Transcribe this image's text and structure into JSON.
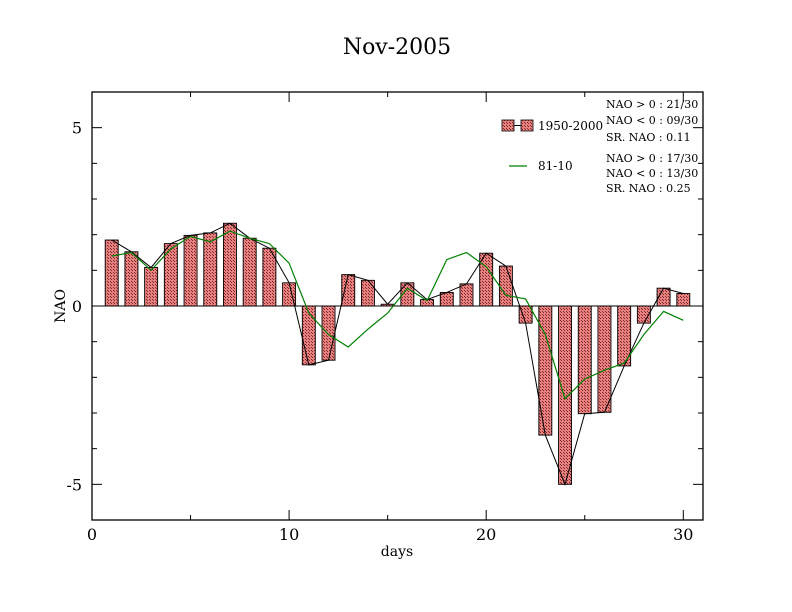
{
  "chart_data": {
    "type": "bar",
    "title": "Nov-2005",
    "xlabel": "days",
    "ylabel": "NAO",
    "xlim": [
      0,
      31
    ],
    "ylim": [
      -6,
      6
    ],
    "xticks": [
      0,
      10,
      20,
      30
    ],
    "yticks": [
      -5,
      0,
      5
    ],
    "grid": false,
    "legend_position": "top-right",
    "colors": {
      "bar_fill": "#e88080",
      "bar_hatch": "#7a2a2a",
      "line_black": "#000000",
      "line_green": "#008000"
    },
    "x": [
      1,
      2,
      3,
      4,
      5,
      6,
      7,
      8,
      9,
      10,
      11,
      12,
      13,
      14,
      15,
      16,
      17,
      18,
      19,
      20,
      21,
      22,
      23,
      24,
      25,
      26,
      27,
      28,
      29,
      30
    ],
    "series": [
      {
        "name": "1950-2000",
        "type": "bar",
        "values": [
          1.85,
          1.52,
          1.08,
          1.75,
          1.98,
          2.05,
          2.32,
          1.9,
          1.62,
          0.65,
          -1.65,
          -1.52,
          0.88,
          0.72,
          0.05,
          0.65,
          0.18,
          0.38,
          0.62,
          1.48,
          1.12,
          -0.48,
          -3.62,
          -5.0,
          -3.02,
          -2.98,
          -1.68,
          -0.48,
          0.5,
          0.35
        ]
      },
      {
        "name": "81-10",
        "type": "line",
        "values": [
          1.4,
          1.5,
          1.0,
          1.6,
          1.95,
          1.8,
          2.1,
          1.9,
          1.75,
          1.2,
          -0.2,
          -0.8,
          -1.15,
          -0.65,
          -0.2,
          0.5,
          0.15,
          1.3,
          1.5,
          1.1,
          0.3,
          0.2,
          -0.8,
          -2.6,
          -2.05,
          -1.8,
          -1.6,
          -0.8,
          -0.15,
          -0.4
        ]
      }
    ],
    "stats": [
      {
        "pos": "NAO > 0 : 21/30",
        "neg": "NAO < 0 : 09/30",
        "sr": "SR. NAO :  0.11"
      },
      {
        "pos": "NAO > 0 : 17/30",
        "neg": "NAO < 0 : 13/30",
        "sr": "SR. NAO :  0.25"
      }
    ]
  }
}
